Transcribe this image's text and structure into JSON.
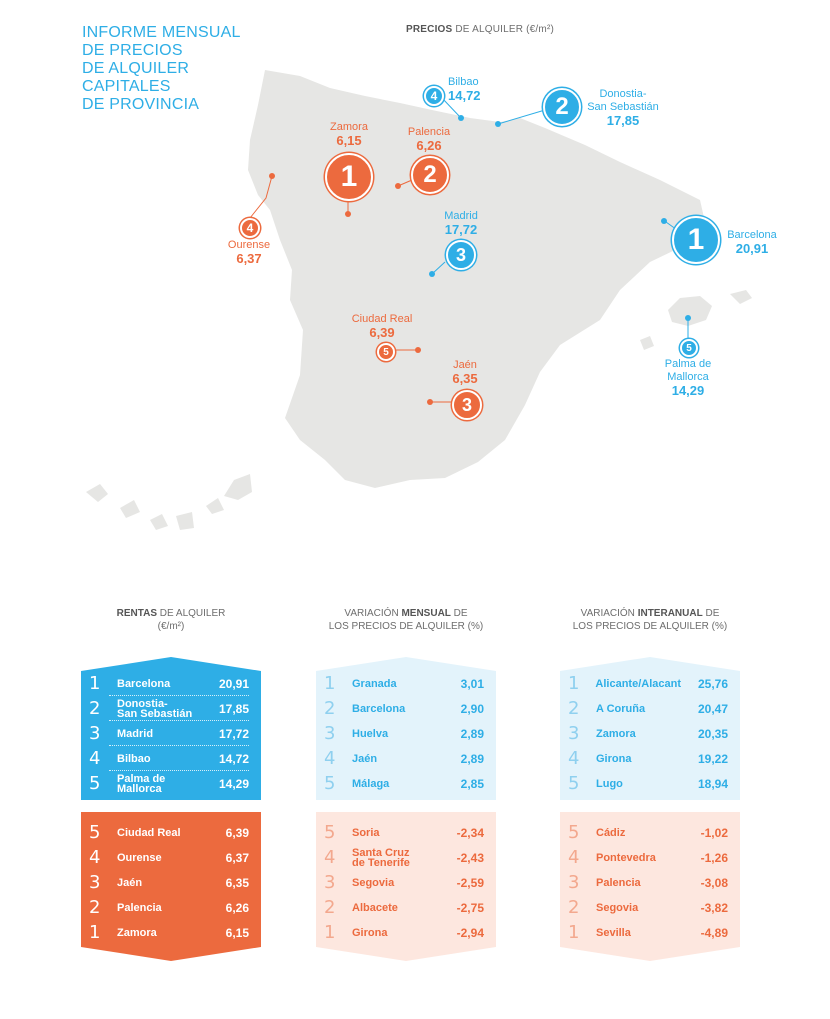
{
  "title_lines": [
    "INFORME MENSUAL",
    "DE PRECIOS",
    "DE ALQUILER",
    "CAPITALES",
    "DE PROVINCIA"
  ],
  "map_header": {
    "bold": "PRECIOS",
    "rest": " DE ALQUILER (€/m²)"
  },
  "colors": {
    "blue": "#2eaee6",
    "orange": "#ec6a3e",
    "land": "#e6e6e4"
  },
  "map_cities": {
    "bilbao": {
      "rank": "4",
      "name": "Bilbao",
      "value": "14,72"
    },
    "donostia": {
      "rank": "2",
      "name": "Donostia-",
      "name2": "San Sebastián",
      "value": "17,85"
    },
    "barcelona": {
      "rank": "1",
      "name": "Barcelona",
      "value": "20,91"
    },
    "madrid": {
      "rank": "3",
      "name": "Madrid",
      "value": "17,72"
    },
    "palma": {
      "rank": "5",
      "name": "Palma de",
      "name2": "Mallorca",
      "value": "14,29"
    },
    "zamora": {
      "rank": "1",
      "name": "Zamora",
      "value": "6,15"
    },
    "palencia": {
      "rank": "2",
      "name": "Palencia",
      "value": "6,26"
    },
    "ourense": {
      "rank": "4",
      "name": "Ourense",
      "value": "6,37"
    },
    "ciudad_real": {
      "rank": "5",
      "name": "Ciudad Real",
      "value": "6,39"
    },
    "jaen": {
      "rank": "3",
      "name": "Jaén",
      "value": "6,35"
    }
  },
  "columns": {
    "rentas": {
      "head_bold": "RENTAS",
      "head_rest": " DE ALQUILER",
      "head_line2": "(€/m²)",
      "top": [
        {
          "rank": "1",
          "name": "Barcelona",
          "value": "20,91"
        },
        {
          "rank": "2",
          "name": "Donostia-\nSan Sebastián",
          "value": "17,85"
        },
        {
          "rank": "3",
          "name": "Madrid",
          "value": "17,72"
        },
        {
          "rank": "4",
          "name": "Bilbao",
          "value": "14,72"
        },
        {
          "rank": "5",
          "name": "Palma de\nMallorca",
          "value": "14,29"
        }
      ],
      "bottom": [
        {
          "rank": "5",
          "name": "Ciudad Real",
          "value": "6,39"
        },
        {
          "rank": "4",
          "name": "Ourense",
          "value": "6,37"
        },
        {
          "rank": "3",
          "name": "Jaén",
          "value": "6,35"
        },
        {
          "rank": "2",
          "name": "Palencia",
          "value": "6,26"
        },
        {
          "rank": "1",
          "name": "Zamora",
          "value": "6,15"
        }
      ]
    },
    "mensual": {
      "head_pre": "VARIACIÓN ",
      "head_bold": "MENSUAL",
      "head_rest": " DE",
      "head_line2": "LOS PRECIOS DE ALQUILER (%)",
      "top": [
        {
          "rank": "1",
          "name": "Granada",
          "value": "3,01"
        },
        {
          "rank": "2",
          "name": "Barcelona",
          "value": "2,90"
        },
        {
          "rank": "3",
          "name": "Huelva",
          "value": "2,89"
        },
        {
          "rank": "4",
          "name": "Jaén",
          "value": "2,89"
        },
        {
          "rank": "5",
          "name": "Málaga",
          "value": "2,85"
        }
      ],
      "bottom": [
        {
          "rank": "5",
          "name": "Soria",
          "value": "-2,34"
        },
        {
          "rank": "4",
          "name": "Santa Cruz\nde Tenerife",
          "value": "-2,43"
        },
        {
          "rank": "3",
          "name": "Segovia",
          "value": "-2,59"
        },
        {
          "rank": "2",
          "name": "Albacete",
          "value": "-2,75"
        },
        {
          "rank": "1",
          "name": "Girona",
          "value": "-2,94"
        }
      ]
    },
    "interanual": {
      "head_pre": "VARIACIÓN ",
      "head_bold": "INTERANUAL",
      "head_rest": " DE",
      "head_line2": "LOS PRECIOS DE ALQUILER (%)",
      "top": [
        {
          "rank": "1",
          "name": "Alicante/Alacant",
          "value": "25,76"
        },
        {
          "rank": "2",
          "name": "A Coruña",
          "value": "20,47"
        },
        {
          "rank": "3",
          "name": "Zamora",
          "value": "20,35"
        },
        {
          "rank": "4",
          "name": "Girona",
          "value": "19,22"
        },
        {
          "rank": "5",
          "name": "Lugo",
          "value": "18,94"
        }
      ],
      "bottom": [
        {
          "rank": "5",
          "name": "Cádiz",
          "value": "-1,02"
        },
        {
          "rank": "4",
          "name": "Pontevedra",
          "value": "-1,26"
        },
        {
          "rank": "3",
          "name": "Palencia",
          "value": "-3,08"
        },
        {
          "rank": "2",
          "name": "Segovia",
          "value": "-3,82"
        },
        {
          "rank": "1",
          "name": "Sevilla",
          "value": "-4,89"
        }
      ]
    }
  }
}
